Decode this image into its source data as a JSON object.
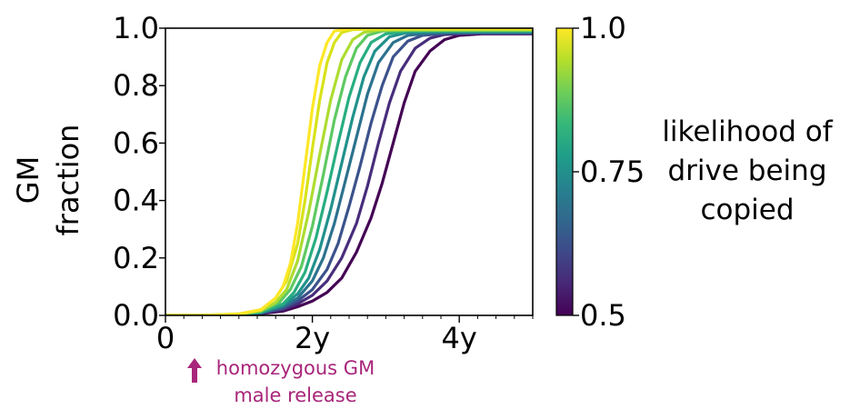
{
  "chart_data": {
    "type": "line",
    "ylabel_lines": [
      "GM",
      "fraction"
    ],
    "x_ticks": [
      {
        "value": 0,
        "label": "0"
      },
      {
        "value": 2,
        "label": "2y"
      },
      {
        "value": 4,
        "label": "4y"
      }
    ],
    "y_ticks": [
      {
        "value": 0.0,
        "label": "0.0"
      },
      {
        "value": 0.2,
        "label": "0.2"
      },
      {
        "value": 0.4,
        "label": "0.4"
      },
      {
        "value": 0.6,
        "label": "0.6"
      },
      {
        "value": 0.8,
        "label": "0.8"
      },
      {
        "value": 1.0,
        "label": "1.0"
      }
    ],
    "xlim": [
      0,
      5
    ],
    "ylim": [
      0,
      1.0
    ],
    "grid": false,
    "series": [
      {
        "drive_likelihood": 0.5,
        "color": "#440154",
        "x": [
          0,
          0.5,
          1.0,
          1.3,
          1.6,
          1.8,
          2.0,
          2.2,
          2.4,
          2.6,
          2.8,
          2.95,
          3.1,
          3.25,
          3.4,
          3.6,
          3.8,
          4.0,
          4.3,
          5.0
        ],
        "y": [
          0,
          0,
          0.002,
          0.006,
          0.015,
          0.03,
          0.05,
          0.08,
          0.13,
          0.22,
          0.34,
          0.46,
          0.6,
          0.74,
          0.85,
          0.92,
          0.96,
          0.975,
          0.98,
          0.98
        ]
      },
      {
        "drive_likelihood": 0.55,
        "color": "#472d7b",
        "x": [
          0,
          0.5,
          1.0,
          1.3,
          1.6,
          1.8,
          2.0,
          2.2,
          2.4,
          2.6,
          2.75,
          2.9,
          3.05,
          3.2,
          3.4,
          3.6,
          3.8,
          4.2,
          5.0
        ],
        "y": [
          0,
          0,
          0.002,
          0.007,
          0.02,
          0.04,
          0.07,
          0.12,
          0.2,
          0.32,
          0.45,
          0.6,
          0.74,
          0.85,
          0.93,
          0.965,
          0.978,
          0.982,
          0.982
        ]
      },
      {
        "drive_likelihood": 0.6,
        "color": "#3b528b",
        "x": [
          0,
          0.5,
          1.0,
          1.3,
          1.6,
          1.8,
          2.0,
          2.2,
          2.35,
          2.5,
          2.65,
          2.8,
          2.95,
          3.1,
          3.3,
          3.5,
          3.8,
          4.2,
          5.0
        ],
        "y": [
          0,
          0,
          0.003,
          0.008,
          0.025,
          0.05,
          0.09,
          0.16,
          0.25,
          0.38,
          0.52,
          0.67,
          0.8,
          0.9,
          0.955,
          0.975,
          0.982,
          0.983,
          0.983
        ]
      },
      {
        "drive_likelihood": 0.65,
        "color": "#2c728e",
        "x": [
          0,
          0.5,
          1.0,
          1.3,
          1.6,
          1.8,
          2.0,
          2.15,
          2.3,
          2.45,
          2.6,
          2.75,
          2.9,
          3.1,
          3.3,
          3.6,
          4.0,
          5.0
        ],
        "y": [
          0,
          0,
          0.003,
          0.009,
          0.03,
          0.06,
          0.12,
          0.2,
          0.32,
          0.47,
          0.62,
          0.77,
          0.88,
          0.95,
          0.975,
          0.983,
          0.985,
          0.985
        ]
      },
      {
        "drive_likelihood": 0.7,
        "color": "#21918c",
        "x": [
          0,
          0.5,
          1.0,
          1.3,
          1.6,
          1.8,
          1.95,
          2.1,
          2.25,
          2.4,
          2.55,
          2.7,
          2.85,
          3.05,
          3.3,
          3.7,
          5.0
        ],
        "y": [
          0,
          0,
          0.003,
          0.01,
          0.035,
          0.075,
          0.13,
          0.23,
          0.37,
          0.53,
          0.69,
          0.83,
          0.92,
          0.97,
          0.985,
          0.988,
          0.988
        ]
      },
      {
        "drive_likelihood": 0.75,
        "color": "#28ae80",
        "x": [
          0,
          0.5,
          1.0,
          1.3,
          1.6,
          1.75,
          1.9,
          2.05,
          2.2,
          2.35,
          2.5,
          2.65,
          2.8,
          3.0,
          3.3,
          3.8,
          5.0
        ],
        "y": [
          0,
          0,
          0.003,
          0.012,
          0.04,
          0.08,
          0.15,
          0.27,
          0.43,
          0.6,
          0.76,
          0.88,
          0.95,
          0.98,
          0.99,
          0.99,
          0.99
        ]
      },
      {
        "drive_likelihood": 0.8,
        "color": "#5ec962",
        "x": [
          0,
          0.5,
          1.0,
          1.3,
          1.55,
          1.7,
          1.85,
          2.0,
          2.15,
          2.3,
          2.45,
          2.6,
          2.75,
          2.95,
          3.3,
          5.0
        ],
        "y": [
          0,
          0,
          0.004,
          0.014,
          0.045,
          0.09,
          0.17,
          0.31,
          0.49,
          0.68,
          0.83,
          0.93,
          0.975,
          0.99,
          0.992,
          0.992
        ]
      },
      {
        "drive_likelihood": 0.85,
        "color": "#addc30",
        "x": [
          0,
          0.5,
          1.0,
          1.3,
          1.5,
          1.65,
          1.8,
          1.95,
          2.1,
          2.25,
          2.4,
          2.55,
          2.7,
          2.9,
          3.3,
          5.0
        ],
        "y": [
          0,
          0,
          0.004,
          0.016,
          0.045,
          0.09,
          0.19,
          0.36,
          0.56,
          0.75,
          0.89,
          0.96,
          0.985,
          0.993,
          0.995,
          0.995
        ]
      },
      {
        "drive_likelihood": 0.9,
        "color": "#d8e219",
        "x": [
          0,
          0.5,
          1.0,
          1.3,
          1.5,
          1.65,
          1.8,
          1.9,
          2.0,
          2.1,
          2.2,
          2.3,
          2.4,
          2.55,
          2.8,
          5.0
        ],
        "y": [
          0,
          0,
          0.005,
          0.02,
          0.06,
          0.12,
          0.25,
          0.4,
          0.58,
          0.75,
          0.88,
          0.95,
          0.985,
          0.995,
          0.997,
          0.997
        ]
      },
      {
        "drive_likelihood": 1.0,
        "color": "#fde725",
        "x": [
          0,
          0.5,
          1.0,
          1.3,
          1.5,
          1.6,
          1.7,
          1.8,
          1.9,
          2.0,
          2.1,
          2.2,
          2.3,
          2.5,
          2.8,
          5.0
        ],
        "y": [
          0,
          0,
          0.005,
          0.02,
          0.06,
          0.1,
          0.18,
          0.32,
          0.52,
          0.72,
          0.87,
          0.95,
          0.99,
          0.998,
          1.0,
          1.0
        ]
      }
    ],
    "colorbar": {
      "title_lines": [
        "likelihood of",
        "drive being",
        "copied"
      ],
      "range": [
        0.5,
        1.0
      ],
      "ticks": [
        {
          "value": 1.0,
          "label": "1.0"
        },
        {
          "value": 0.75,
          "label": "0.75"
        },
        {
          "value": 0.5,
          "label": "0.5"
        }
      ],
      "colormap": [
        "#440154",
        "#482878",
        "#3e4989",
        "#31688e",
        "#26828e",
        "#1f9e89",
        "#35b779",
        "#6ece58",
        "#b5de2b",
        "#fde725"
      ]
    },
    "annotation": {
      "lines": [
        "homozygous GM",
        "male release"
      ],
      "arrow": "up-arrow",
      "x_value": 0.38,
      "color": "#a8267a"
    }
  }
}
